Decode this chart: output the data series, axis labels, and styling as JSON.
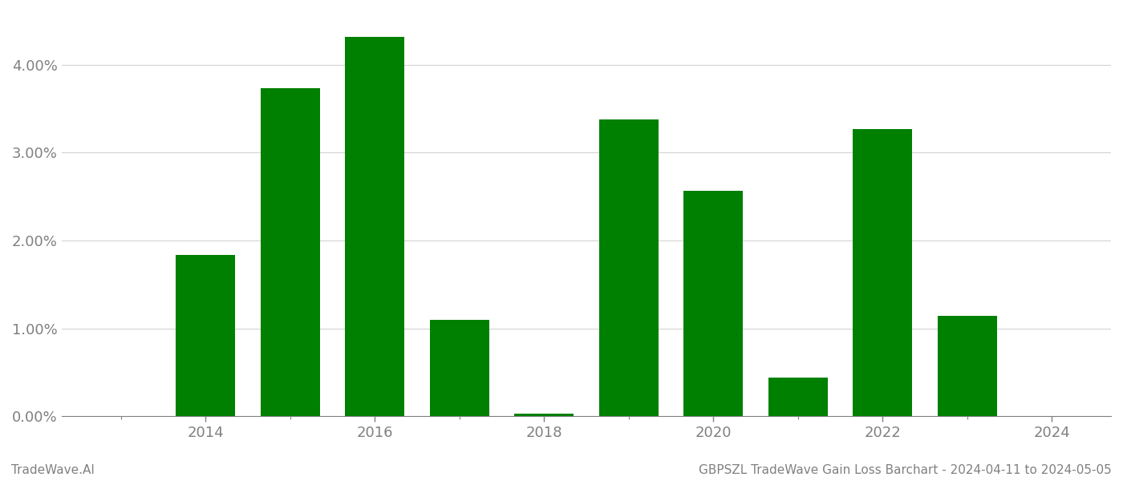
{
  "years": [
    2013,
    2014,
    2015,
    2016,
    2017,
    2018,
    2019,
    2020,
    2021,
    2022,
    2023,
    2024
  ],
  "values": [
    0.0,
    0.0184,
    0.0373,
    0.0432,
    0.011,
    0.00025,
    0.0338,
    0.0257,
    0.0044,
    0.0327,
    0.0114,
    0.0
  ],
  "bar_color": "#008000",
  "ylim": [
    0,
    0.046
  ],
  "xlim": [
    2012.3,
    2024.7
  ],
  "xticks": [
    2014,
    2016,
    2018,
    2020,
    2022,
    2024
  ],
  "all_xticks": [
    2013,
    2014,
    2015,
    2016,
    2017,
    2018,
    2019,
    2020,
    2021,
    2022,
    2023,
    2024
  ],
  "footer_left": "TradeWave.AI",
  "footer_right": "GBPSZL TradeWave Gain Loss Barchart - 2024-04-11 to 2024-05-05",
  "background_color": "#ffffff",
  "bar_width": 0.7,
  "tick_fontsize": 13,
  "footer_fontsize": 11
}
